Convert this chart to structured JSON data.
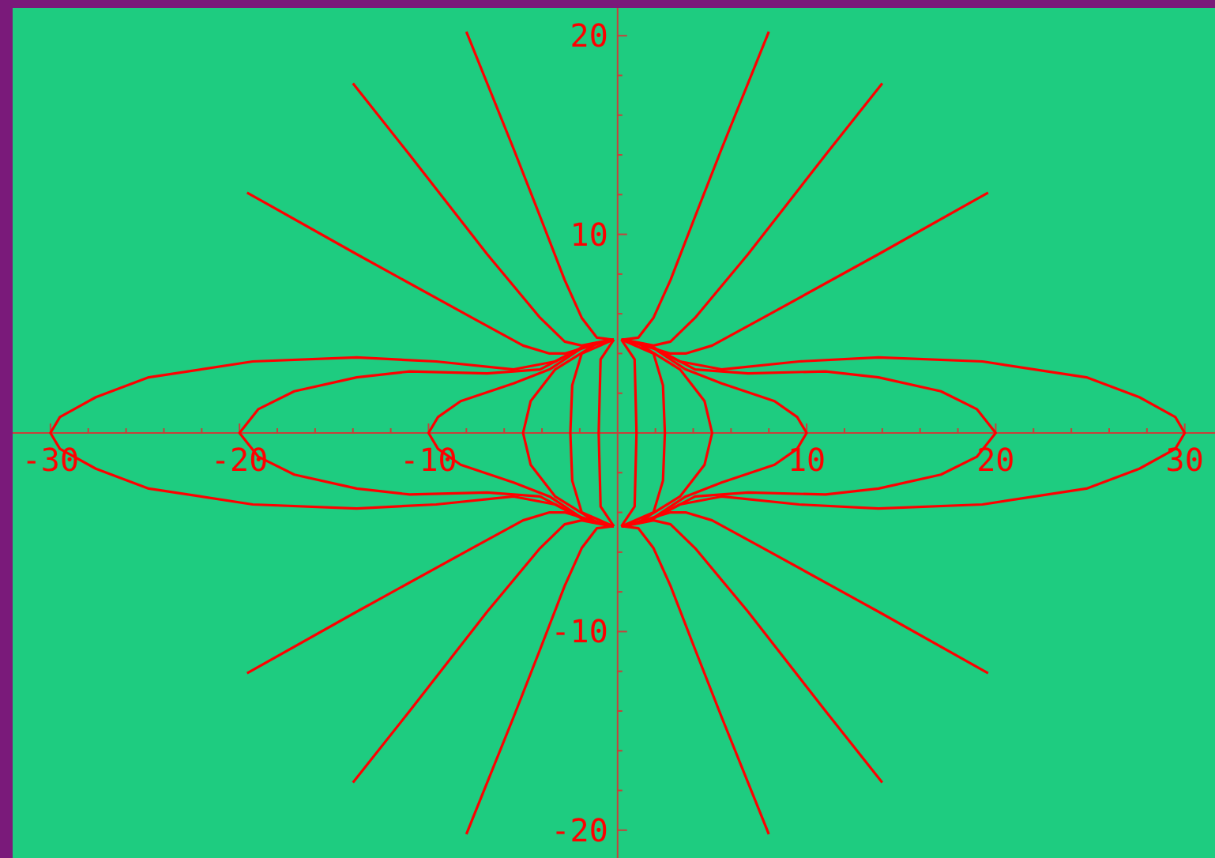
{
  "chart_data": {
    "type": "line",
    "xlim": [
      -32,
      31.6
    ],
    "ylim": [
      -21.4,
      21.4
    ],
    "xticks": [
      -30,
      {
        "value": -28,
        "label": null
      },
      {
        "value": -26,
        "label": null
      },
      {
        "value": -24,
        "label": null
      },
      {
        "value": -22,
        "label": null
      },
      -20,
      {
        "value": -18,
        "label": null
      },
      {
        "value": -16,
        "label": null
      },
      {
        "value": -14,
        "label": null
      },
      {
        "value": -12,
        "label": null
      },
      -10,
      {
        "value": -8,
        "label": null
      },
      {
        "value": -6,
        "label": null
      },
      {
        "value": -4,
        "label": null
      },
      {
        "value": -2,
        "label": null
      },
      {
        "value": 2,
        "label": null
      },
      {
        "value": 4,
        "label": null
      },
      {
        "value": 6,
        "label": null
      },
      {
        "value": 8,
        "label": null
      },
      10,
      {
        "value": 12,
        "label": null
      },
      {
        "value": 14,
        "label": null
      },
      {
        "value": 16,
        "label": null
      },
      {
        "value": 18,
        "label": null
      },
      20,
      {
        "value": 22,
        "label": null
      },
      {
        "value": 24,
        "label": null
      },
      {
        "value": 26,
        "label": null
      },
      {
        "value": 28,
        "label": null
      },
      30
    ],
    "yticks": [
      -20,
      {
        "value": -18,
        "label": null
      },
      {
        "value": -16,
        "label": null
      },
      {
        "value": -14,
        "label": null
      },
      {
        "value": -12,
        "label": null
      },
      -10,
      {
        "value": -8,
        "label": null
      },
      {
        "value": -6,
        "label": null
      },
      {
        "value": -4,
        "label": null
      },
      {
        "value": -2,
        "label": null
      },
      {
        "value": 2,
        "label": null
      },
      {
        "value": 4,
        "label": null
      },
      {
        "value": 6,
        "label": null
      },
      {
        "value": 8,
        "label": null
      },
      10,
      {
        "value": 12,
        "label": null
      },
      {
        "value": 14,
        "label": null
      },
      {
        "value": 16,
        "label": null
      },
      {
        "value": 18,
        "label": null
      },
      20
    ],
    "series": [
      {
        "color": "#ff0000",
        "x": [
          0.3,
          1.1,
          1.9,
          2.8,
          4.1,
          5.5,
          8
        ],
        "values": [
          4.7,
          4.8,
          5.8,
          7.7,
          10.9,
          14.3,
          20.2
        ]
      },
      {
        "color": "#ff0000",
        "x": [
          0.3,
          1.9,
          2.8,
          4.1,
          6.9,
          11,
          14
        ],
        "values": [
          4.7,
          4.4,
          4.6,
          5.8,
          9,
          14,
          17.6
        ]
      },
      {
        "color": "#ff0000",
        "x": [
          0.3,
          2.8,
          3.6,
          5,
          7.7,
          13.8,
          19.6
        ],
        "values": [
          4.7,
          4,
          4,
          4.4,
          5.8,
          9,
          12.1
        ]
      },
      {
        "color": "#ff0000",
        "x": [
          -0.3,
          -1.1,
          -1.9,
          -2.8,
          -4.1,
          -5.5,
          -8
        ],
        "values": [
          4.7,
          4.8,
          5.8,
          7.7,
          10.9,
          14.3,
          20.2
        ]
      },
      {
        "color": "#ff0000",
        "x": [
          -0.3,
          -1.9,
          -2.8,
          -4.1,
          -6.9,
          -11,
          -14
        ],
        "values": [
          4.7,
          4.4,
          4.6,
          5.8,
          9,
          14,
          17.6
        ]
      },
      {
        "color": "#ff0000",
        "x": [
          -0.3,
          -2.8,
          -3.6,
          -5,
          -7.7,
          -13.8,
          -19.6
        ],
        "values": [
          4.7,
          4,
          4,
          4.4,
          5.8,
          9,
          12.1
        ]
      },
      {
        "color": "#ff0000",
        "x": [
          0.3,
          1.1,
          1.9,
          2.8,
          4.1,
          5.5,
          8
        ],
        "values": [
          -4.7,
          -4.8,
          -5.8,
          -7.7,
          -10.9,
          -14.3,
          -20.2
        ]
      },
      {
        "color": "#ff0000",
        "x": [
          0.3,
          1.9,
          2.8,
          4.1,
          6.9,
          11,
          14
        ],
        "values": [
          -4.7,
          -4.4,
          -4.6,
          -5.8,
          -9,
          -14,
          -17.6
        ]
      },
      {
        "color": "#ff0000",
        "x": [
          0.3,
          2.8,
          3.6,
          5,
          7.7,
          13.8,
          19.6
        ],
        "values": [
          -4.7,
          -4,
          -4,
          -4.4,
          -5.8,
          -9,
          -12.1
        ]
      },
      {
        "color": "#ff0000",
        "x": [
          -0.3,
          -1.1,
          -1.9,
          -2.8,
          -4.1,
          -5.5,
          -8
        ],
        "values": [
          -4.7,
          -4.8,
          -5.8,
          -7.7,
          -10.9,
          -14.3,
          -20.2
        ]
      },
      {
        "color": "#ff0000",
        "x": [
          -0.3,
          -1.9,
          -2.8,
          -4.1,
          -6.9,
          -11,
          -14
        ],
        "values": [
          -4.7,
          -4.4,
          -4.6,
          -5.8,
          -9,
          -14,
          -17.6
        ]
      },
      {
        "color": "#ff0000",
        "x": [
          -0.3,
          -2.8,
          -3.6,
          -5,
          -7.7,
          -13.8,
          -19.6
        ],
        "values": [
          -4.7,
          -4,
          -4,
          -4.4,
          -5.8,
          -9,
          -12.1
        ]
      },
      {
        "color": "#ff0000",
        "x": [
          0.2,
          1.7,
          3.3,
          5.5,
          9.6,
          13.8,
          19.3,
          24.8,
          27.6,
          29.5,
          30,
          29.5,
          27.6,
          24.8,
          19.3,
          13.8,
          9.6,
          5.5,
          3.3,
          1.7,
          0.2
        ],
        "values": [
          4.7,
          4.4,
          3.6,
          3.2,
          3.6,
          3.8,
          3.6,
          2.8,
          1.8,
          0.8,
          0,
          -0.8,
          -1.8,
          -2.8,
          -3.6,
          -3.8,
          -3.6,
          -3.2,
          -3.6,
          -4.4,
          -4.7
        ]
      },
      {
        "color": "#ff0000",
        "x": [
          0.2,
          1.7,
          4.1,
          6.9,
          11,
          13.8,
          17.1,
          19,
          20,
          19,
          17.1,
          13.8,
          11,
          6.9,
          4.1,
          1.7,
          0.2
        ],
        "values": [
          4.7,
          4.4,
          3.2,
          3,
          3.1,
          2.8,
          2.1,
          1.2,
          0,
          -1.2,
          -2.1,
          -2.8,
          -3.1,
          -3,
          -3.2,
          -4.4,
          -4.7
        ]
      },
      {
        "color": "#ff0000",
        "x": [
          0.2,
          1.7,
          3.6,
          5.5,
          8.3,
          9.5,
          10,
          9.5,
          8.3,
          5.5,
          3.6,
          1.7,
          0.2
        ],
        "values": [
          4.7,
          4.4,
          3.2,
          2.5,
          1.6,
          0.8,
          0,
          -0.8,
          -1.6,
          -2.5,
          -3.2,
          -4.4,
          -4.7
        ]
      },
      {
        "color": "#ff0000",
        "x": [
          0.2,
          1.1,
          3.3,
          4.6,
          5,
          4.6,
          3.3,
          1.1,
          0.2
        ],
        "values": [
          4.7,
          4.5,
          3.2,
          1.6,
          0,
          -1.6,
          -3.2,
          -4.5,
          -4.7
        ]
      },
      {
        "color": "#ff0000",
        "x": [
          0.2,
          1.9,
          2.4,
          2.5,
          2.4,
          1.9,
          0.2
        ],
        "values": [
          4.7,
          4,
          2.4,
          0,
          -2.4,
          -4,
          -4.7
        ]
      },
      {
        "color": "#ff0000",
        "x": [
          0.2,
          0.9,
          1,
          0.9,
          0.2
        ],
        "values": [
          4.7,
          3.7,
          0,
          -3.7,
          -4.7
        ]
      },
      {
        "color": "#ff0000",
        "x": [
          -0.2,
          -1.7,
          -3.3,
          -5.5,
          -9.6,
          -13.8,
          -19.3,
          -24.8,
          -27.6,
          -29.5,
          -30,
          -29.5,
          -27.6,
          -24.8,
          -19.3,
          -13.8,
          -9.6,
          -5.5,
          -3.3,
          -1.7,
          -0.2
        ],
        "values": [
          4.7,
          4.4,
          3.6,
          3.2,
          3.6,
          3.8,
          3.6,
          2.8,
          1.8,
          0.8,
          0,
          -0.8,
          -1.8,
          -2.8,
          -3.6,
          -3.8,
          -3.6,
          -3.2,
          -3.6,
          -4.4,
          -4.7
        ]
      },
      {
        "color": "#ff0000",
        "x": [
          -0.2,
          -1.7,
          -4.1,
          -6.9,
          -11,
          -13.8,
          -17.1,
          -19,
          -20,
          -19,
          -17.1,
          -13.8,
          -11,
          -6.9,
          -4.1,
          -1.7,
          -0.2
        ],
        "values": [
          4.7,
          4.4,
          3.2,
          3,
          3.1,
          2.8,
          2.1,
          1.2,
          0,
          -1.2,
          -2.1,
          -2.8,
          -3.1,
          -3,
          -3.2,
          -4.4,
          -4.7
        ]
      },
      {
        "color": "#ff0000",
        "x": [
          -0.2,
          -1.7,
          -3.6,
          -5.5,
          -8.3,
          -9.5,
          -10,
          -9.5,
          -8.3,
          -5.5,
          -3.6,
          -1.7,
          -0.2
        ],
        "values": [
          4.7,
          4.4,
          3.2,
          2.5,
          1.6,
          0.8,
          0,
          -0.8,
          -1.6,
          -2.5,
          -3.2,
          -4.4,
          -4.7
        ]
      },
      {
        "color": "#ff0000",
        "x": [
          -0.2,
          -1.1,
          -3.3,
          -4.6,
          -5,
          -4.6,
          -3.3,
          -1.1,
          -0.2
        ],
        "values": [
          4.7,
          4.5,
          3.2,
          1.6,
          0,
          -1.6,
          -3.2,
          -4.5,
          -4.7
        ]
      },
      {
        "color": "#ff0000",
        "x": [
          -0.2,
          -1.9,
          -2.4,
          -2.5,
          -2.4,
          -1.9,
          -0.2
        ],
        "values": [
          4.7,
          4,
          2.4,
          0,
          -2.4,
          -4,
          -4.7
        ]
      },
      {
        "color": "#ff0000",
        "x": [
          -0.2,
          -0.9,
          -1,
          -0.9,
          -0.2
        ],
        "values": [
          4.7,
          3.7,
          0,
          -3.7,
          -4.7
        ]
      }
    ]
  }
}
